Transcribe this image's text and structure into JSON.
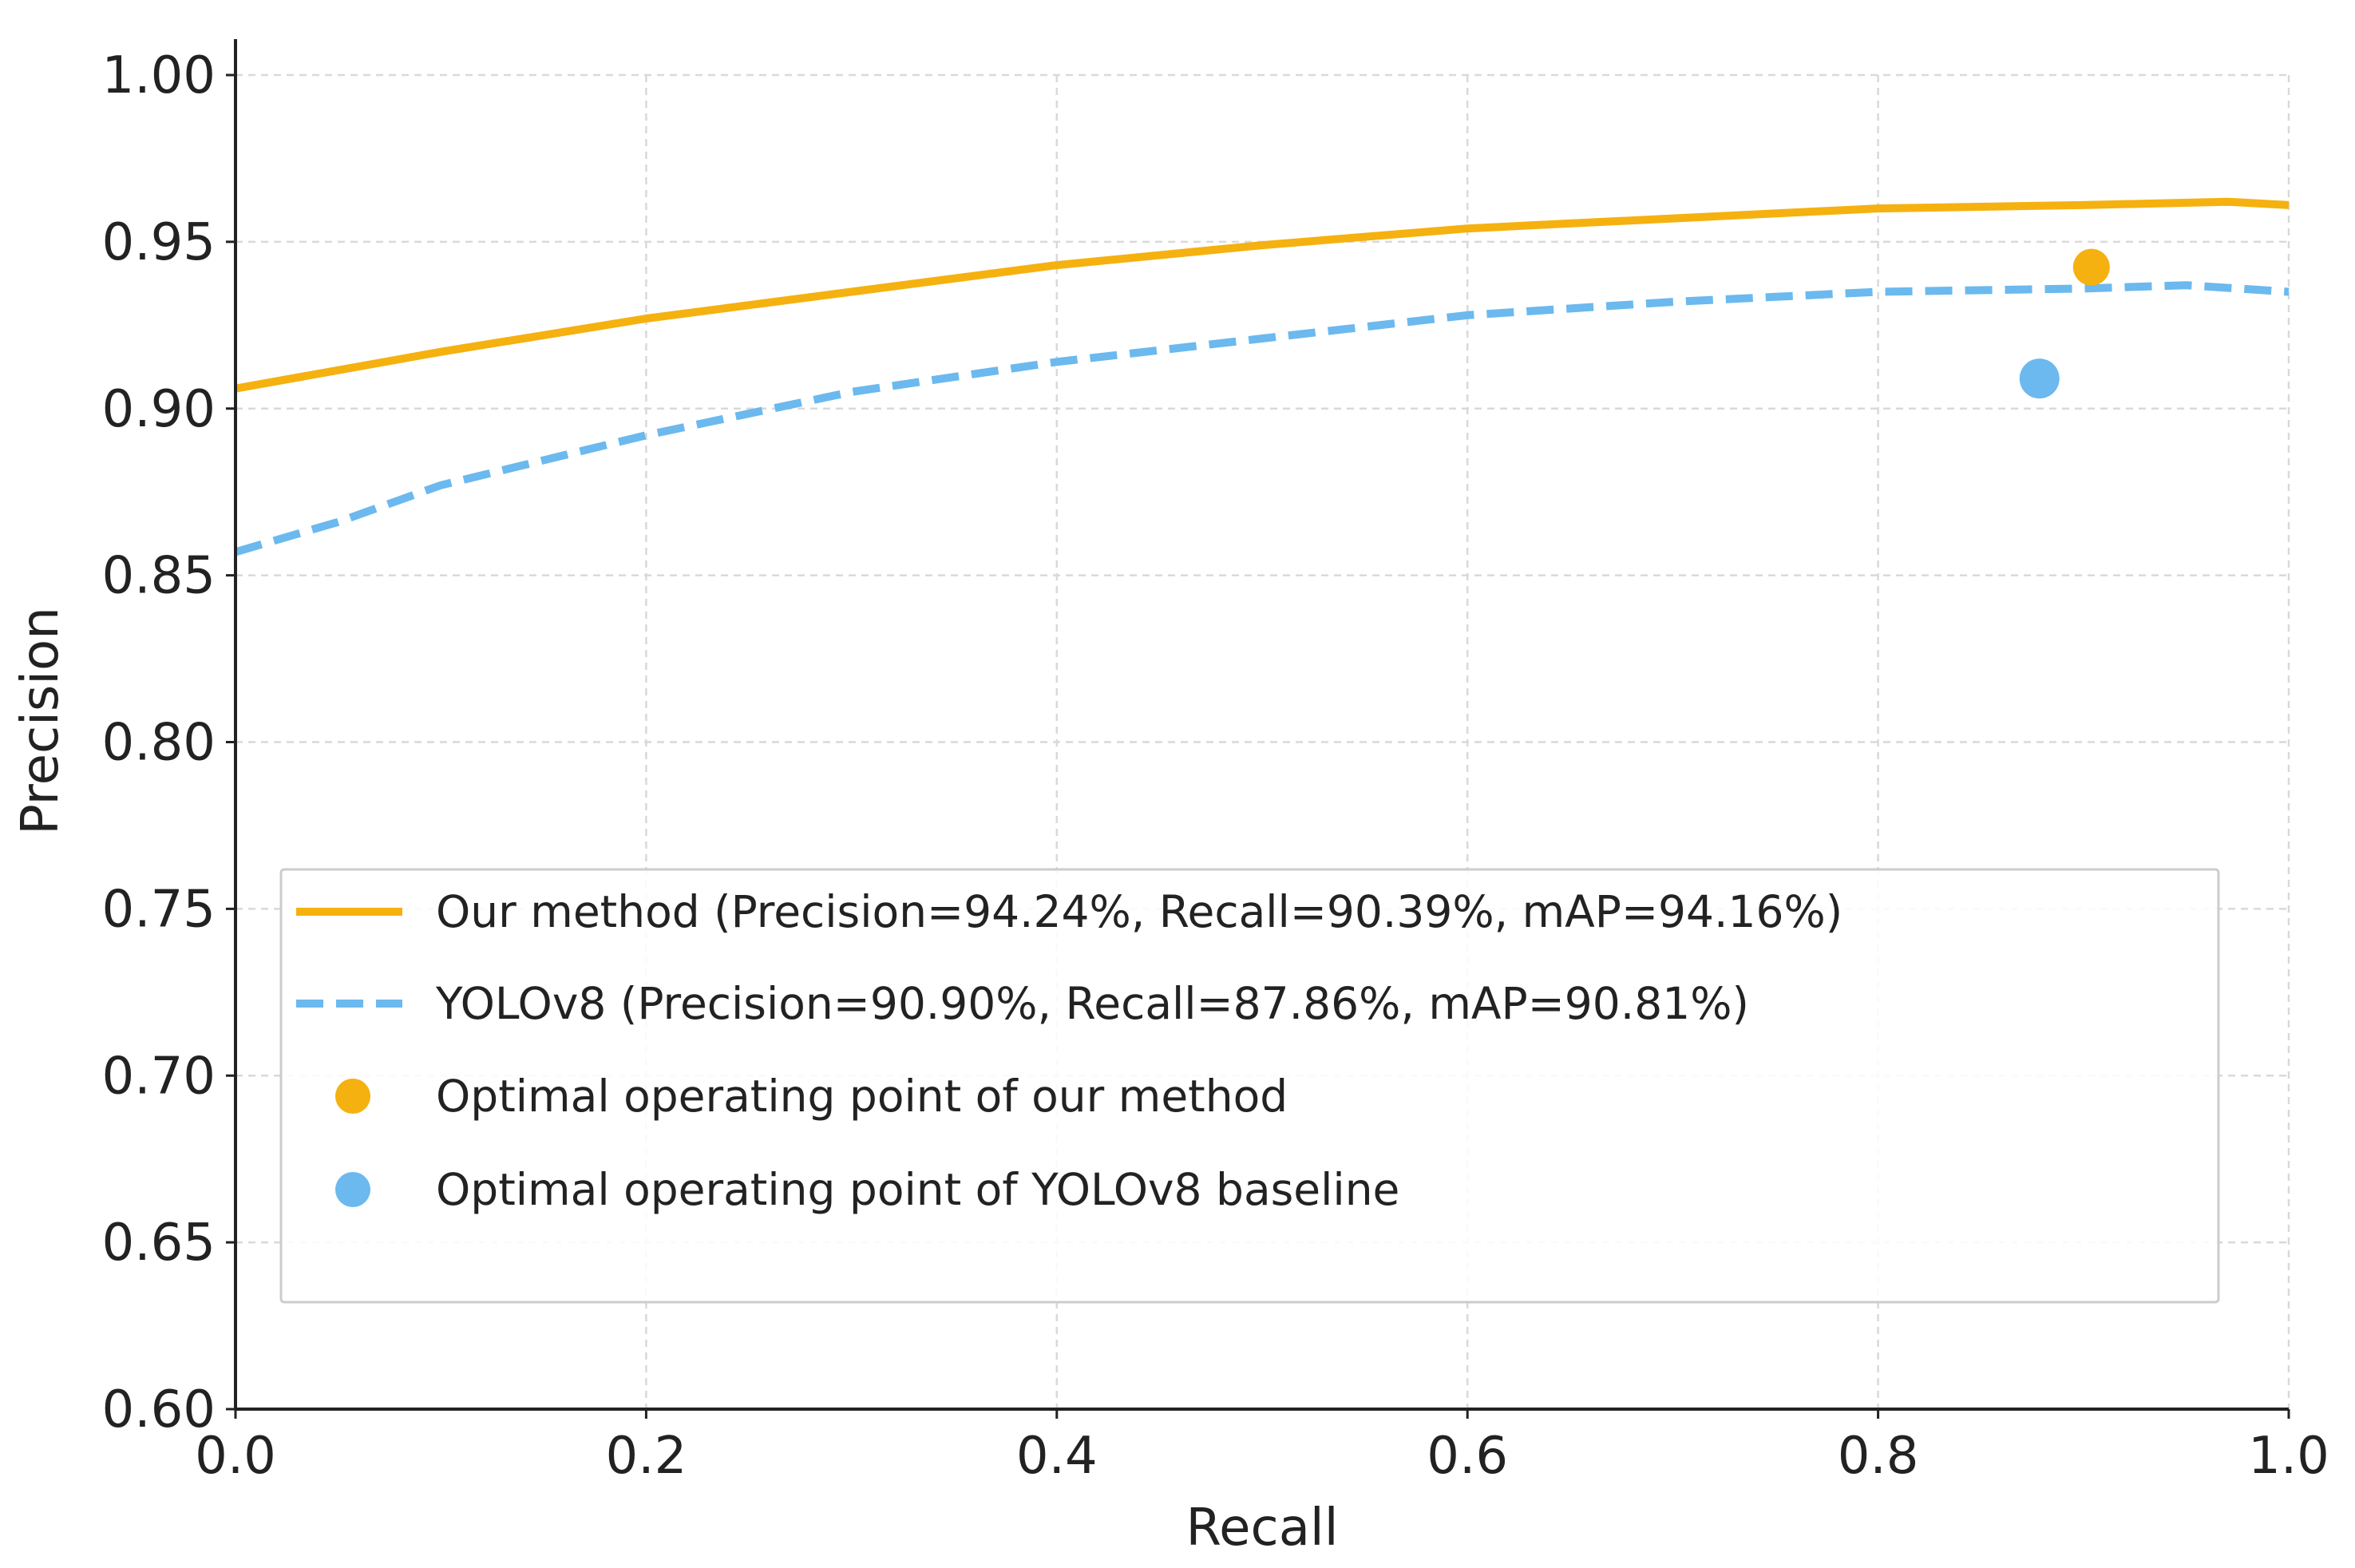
{
  "chart_data": {
    "type": "line",
    "title": "",
    "xlabel": "Recall",
    "ylabel": "Precision",
    "xlim": [
      0.0,
      1.0
    ],
    "ylim": [
      0.6,
      1.0
    ],
    "xticks": [
      "0.0",
      "0.2",
      "0.4",
      "0.6",
      "0.8",
      "1.0"
    ],
    "yticks": [
      "0.60",
      "0.65",
      "0.70",
      "0.75",
      "0.80",
      "0.85",
      "0.90",
      "0.95",
      "1.00"
    ],
    "grid": true,
    "legend_placement": "lower-center",
    "series": [
      {
        "name": "Our method (Precision=94.24%, Recall=90.39%, mAP=94.16%)",
        "style": "solid",
        "color": "#F5B10F",
        "x": [
          0,
          0.1,
          0.2,
          0.3,
          0.4,
          0.5,
          0.6,
          0.7,
          0.8,
          0.9,
          0.97,
          1.0
        ],
        "y": [
          0.906,
          0.917,
          0.927,
          0.935,
          0.943,
          0.949,
          0.954,
          0.957,
          0.96,
          0.961,
          0.962,
          0.961
        ]
      },
      {
        "name": "YOLOv8 (Precision=90.90%, Recall=87.86%, mAP=90.81%)",
        "style": "dashed",
        "color": "#6BB9EE",
        "x": [
          0,
          0.05,
          0.1,
          0.2,
          0.3,
          0.4,
          0.5,
          0.6,
          0.7,
          0.8,
          0.9,
          0.95,
          1.0
        ],
        "y": [
          0.857,
          0.866,
          0.877,
          0.892,
          0.905,
          0.914,
          0.921,
          0.928,
          0.932,
          0.935,
          0.936,
          0.937,
          0.935
        ]
      }
    ],
    "points": [
      {
        "name": "Optimal operating point of our method",
        "x": 0.9039,
        "y": 0.9424,
        "color": "#F5B10F"
      },
      {
        "name": "Optimal operating point of YOLOv8 baseline",
        "x": 0.8786,
        "y": 0.909,
        "color": "#6BB9EE"
      }
    ]
  }
}
